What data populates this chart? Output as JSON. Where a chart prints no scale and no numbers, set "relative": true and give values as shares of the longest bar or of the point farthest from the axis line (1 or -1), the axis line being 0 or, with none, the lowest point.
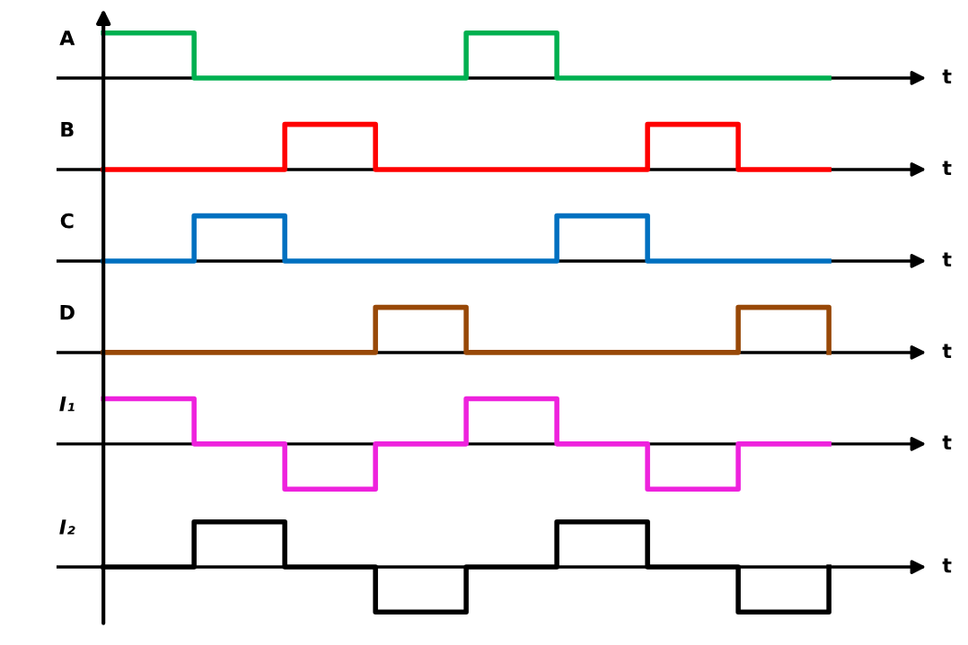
{
  "chart_data": [
    {
      "type": "step",
      "ylabel": "A",
      "xlabel": "t",
      "relative": true,
      "tick_labels": false,
      "color": "#00b050",
      "categories": [
        null,
        null,
        null,
        null,
        null,
        null,
        null,
        null,
        null
      ],
      "values": [
        1,
        0,
        0,
        0,
        1,
        0,
        0,
        0,
        0
      ]
    },
    {
      "type": "step",
      "ylabel": "B",
      "xlabel": "t",
      "relative": true,
      "tick_labels": false,
      "color": "#ff0000",
      "categories": [
        null,
        null,
        null,
        null,
        null,
        null,
        null,
        null,
        null
      ],
      "values": [
        0,
        0,
        1,
        0,
        0,
        0,
        1,
        0,
        0
      ]
    },
    {
      "type": "step",
      "ylabel": "C",
      "xlabel": "t",
      "relative": true,
      "tick_labels": false,
      "color": "#0070c0",
      "categories": [
        null,
        null,
        null,
        null,
        null,
        null,
        null,
        null,
        null
      ],
      "values": [
        0,
        1,
        0,
        0,
        0,
        1,
        0,
        0,
        0
      ]
    },
    {
      "type": "step",
      "ylabel": "D",
      "xlabel": "t",
      "relative": true,
      "tick_labels": false,
      "color": "#984807",
      "categories": [
        null,
        null,
        null,
        null,
        null,
        null,
        null,
        null,
        null
      ],
      "values": [
        0,
        0,
        0,
        1,
        0,
        0,
        0,
        1,
        0
      ]
    },
    {
      "type": "step",
      "ylabel": "I₁",
      "xlabel": "t",
      "relative": true,
      "tick_labels": false,
      "color": "#ee22dd",
      "categories": [
        null,
        null,
        null,
        null,
        null,
        null,
        null,
        null,
        null
      ],
      "values": [
        1,
        0,
        -1,
        0,
        1,
        0,
        -1,
        0,
        0
      ]
    },
    {
      "type": "step",
      "ylabel": "I₂",
      "xlabel": "t",
      "relative": true,
      "tick_labels": false,
      "color": "#000000",
      "categories": [
        null,
        null,
        null,
        null,
        null,
        null,
        null,
        null,
        null
      ],
      "values": [
        0,
        1,
        0,
        -1,
        0,
        1,
        0,
        -1,
        0
      ]
    }
  ]
}
